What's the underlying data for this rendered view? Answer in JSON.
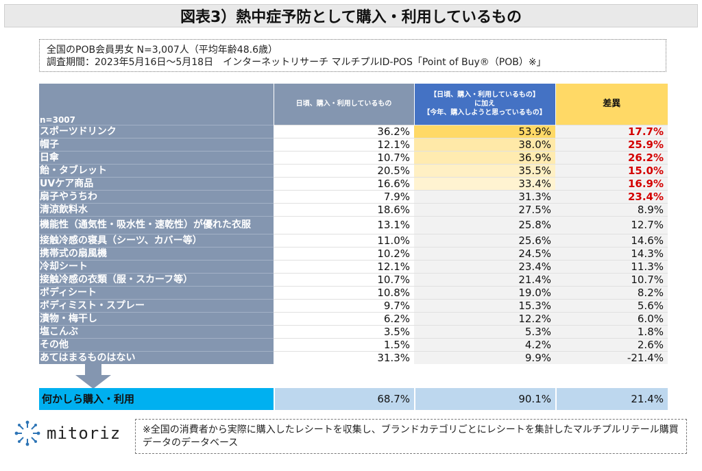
{
  "title": "図表3）熱中症予防として購入・利用しているもの",
  "info": {
    "line1": "全国のPOB会員男女 N=3,007人（平均年齢48.6歳）",
    "line2": "調査期間：2023年5月16日〜5月18日　インターネットリサーチ マルチプルID-POS「Point of Buy®（POB）※」"
  },
  "table": {
    "n_label": "n=3007",
    "col_a": "日頃、購入・利用しているもの",
    "col_b_line1": "【日頃、購入・利用しているもの】",
    "col_b_line2": "に加え",
    "col_b_line3": "【今年、購入しようと思っているもの】",
    "col_c": "差異",
    "rows": [
      {
        "label": "スポーツドリンク",
        "a": "36.2%",
        "b": "53.9%",
        "c": "17.7%",
        "b_bg": "#ffd966",
        "c_red": true
      },
      {
        "label": "帽子",
        "a": "12.1%",
        "b": "38.0%",
        "c": "25.9%",
        "b_bg": "#ffe9a8",
        "c_red": true
      },
      {
        "label": "日傘",
        "a": "10.7%",
        "b": "36.9%",
        "c": "26.2%",
        "b_bg": "#ffebb0",
        "c_red": true
      },
      {
        "label": "飴・タブレット",
        "a": "20.5%",
        "b": "35.5%",
        "c": "15.0%",
        "b_bg": "#fff0c4",
        "c_red": true
      },
      {
        "label": "UVケア商品",
        "a": "16.6%",
        "b": "33.4%",
        "c": "16.9%",
        "b_bg": "#fff3d1",
        "c_red": true
      },
      {
        "label": "扇子やうちわ",
        "a": "7.9%",
        "b": "31.3%",
        "c": "23.4%",
        "b_bg": "#f2f2f2",
        "c_red": true
      },
      {
        "label": "清涼飲料水",
        "a": "18.6%",
        "b": "27.5%",
        "c": "8.9%",
        "b_bg": "#f2f2f2",
        "c_red": false
      },
      {
        "label": "機能性（通気性・吸水性・速乾性）が優れた衣服",
        "a": "13.1%",
        "b": "25.8%",
        "c": "12.7%",
        "b_bg": "#f2f2f2",
        "c_red": false,
        "tall": true
      },
      {
        "label": "接触冷感の寝具（シーツ、カバー等）",
        "a": "11.0%",
        "b": "25.6%",
        "c": "14.6%",
        "b_bg": "#f2f2f2",
        "c_red": false
      },
      {
        "label": "携帯式の扇風機",
        "a": "10.2%",
        "b": "24.5%",
        "c": "14.3%",
        "b_bg": "#f2f2f2",
        "c_red": false
      },
      {
        "label": "冷却シート",
        "a": "12.1%",
        "b": "23.4%",
        "c": "11.3%",
        "b_bg": "#f2f2f2",
        "c_red": false
      },
      {
        "label": "接触冷感の衣類（服・スカーフ等）",
        "a": "10.7%",
        "b": "21.4%",
        "c": "10.7%",
        "b_bg": "#f2f2f2",
        "c_red": false
      },
      {
        "label": "ボディシート",
        "a": "10.8%",
        "b": "19.0%",
        "c": "8.2%",
        "b_bg": "#f2f2f2",
        "c_red": false
      },
      {
        "label": "ボディミスト・スプレー",
        "a": "9.7%",
        "b": "15.3%",
        "c": "5.6%",
        "b_bg": "#f2f2f2",
        "c_red": false
      },
      {
        "label": "漬物・梅干し",
        "a": "6.2%",
        "b": "12.2%",
        "c": "6.0%",
        "b_bg": "#f2f2f2",
        "c_red": false
      },
      {
        "label": "塩こんぶ",
        "a": "3.5%",
        "b": "5.3%",
        "c": "1.8%",
        "b_bg": "#f2f2f2",
        "c_red": false
      },
      {
        "label": "その他",
        "a": "1.5%",
        "b": "4.2%",
        "c": "2.6%",
        "b_bg": "#f2f2f2",
        "c_red": false
      },
      {
        "label": "あてはまるものはない",
        "a": "31.3%",
        "b": "9.9%",
        "c": "-21.4%",
        "b_bg": "#f2f2f2",
        "c_red": false
      }
    ],
    "total": {
      "label": "何かしら購入・利用",
      "a": "68.7%",
      "b": "90.1%",
      "c": "21.4%"
    }
  },
  "logo": {
    "text": "mitoriz",
    "icon": "network-star-icon",
    "color": "#2e75b6"
  },
  "note": "※全国の消費者から実際に購入したレシートを収集し、ブランドカテゴリごとにレシートを集計したマルチプルリテール購買データのデータベース",
  "colors": {
    "header_gray": "#8496b0",
    "header_blue": "#4472c4",
    "highlight": "#ffd966",
    "total": "#00b0f0",
    "total_cells": "#bdd7ee",
    "red": "#d40000"
  }
}
